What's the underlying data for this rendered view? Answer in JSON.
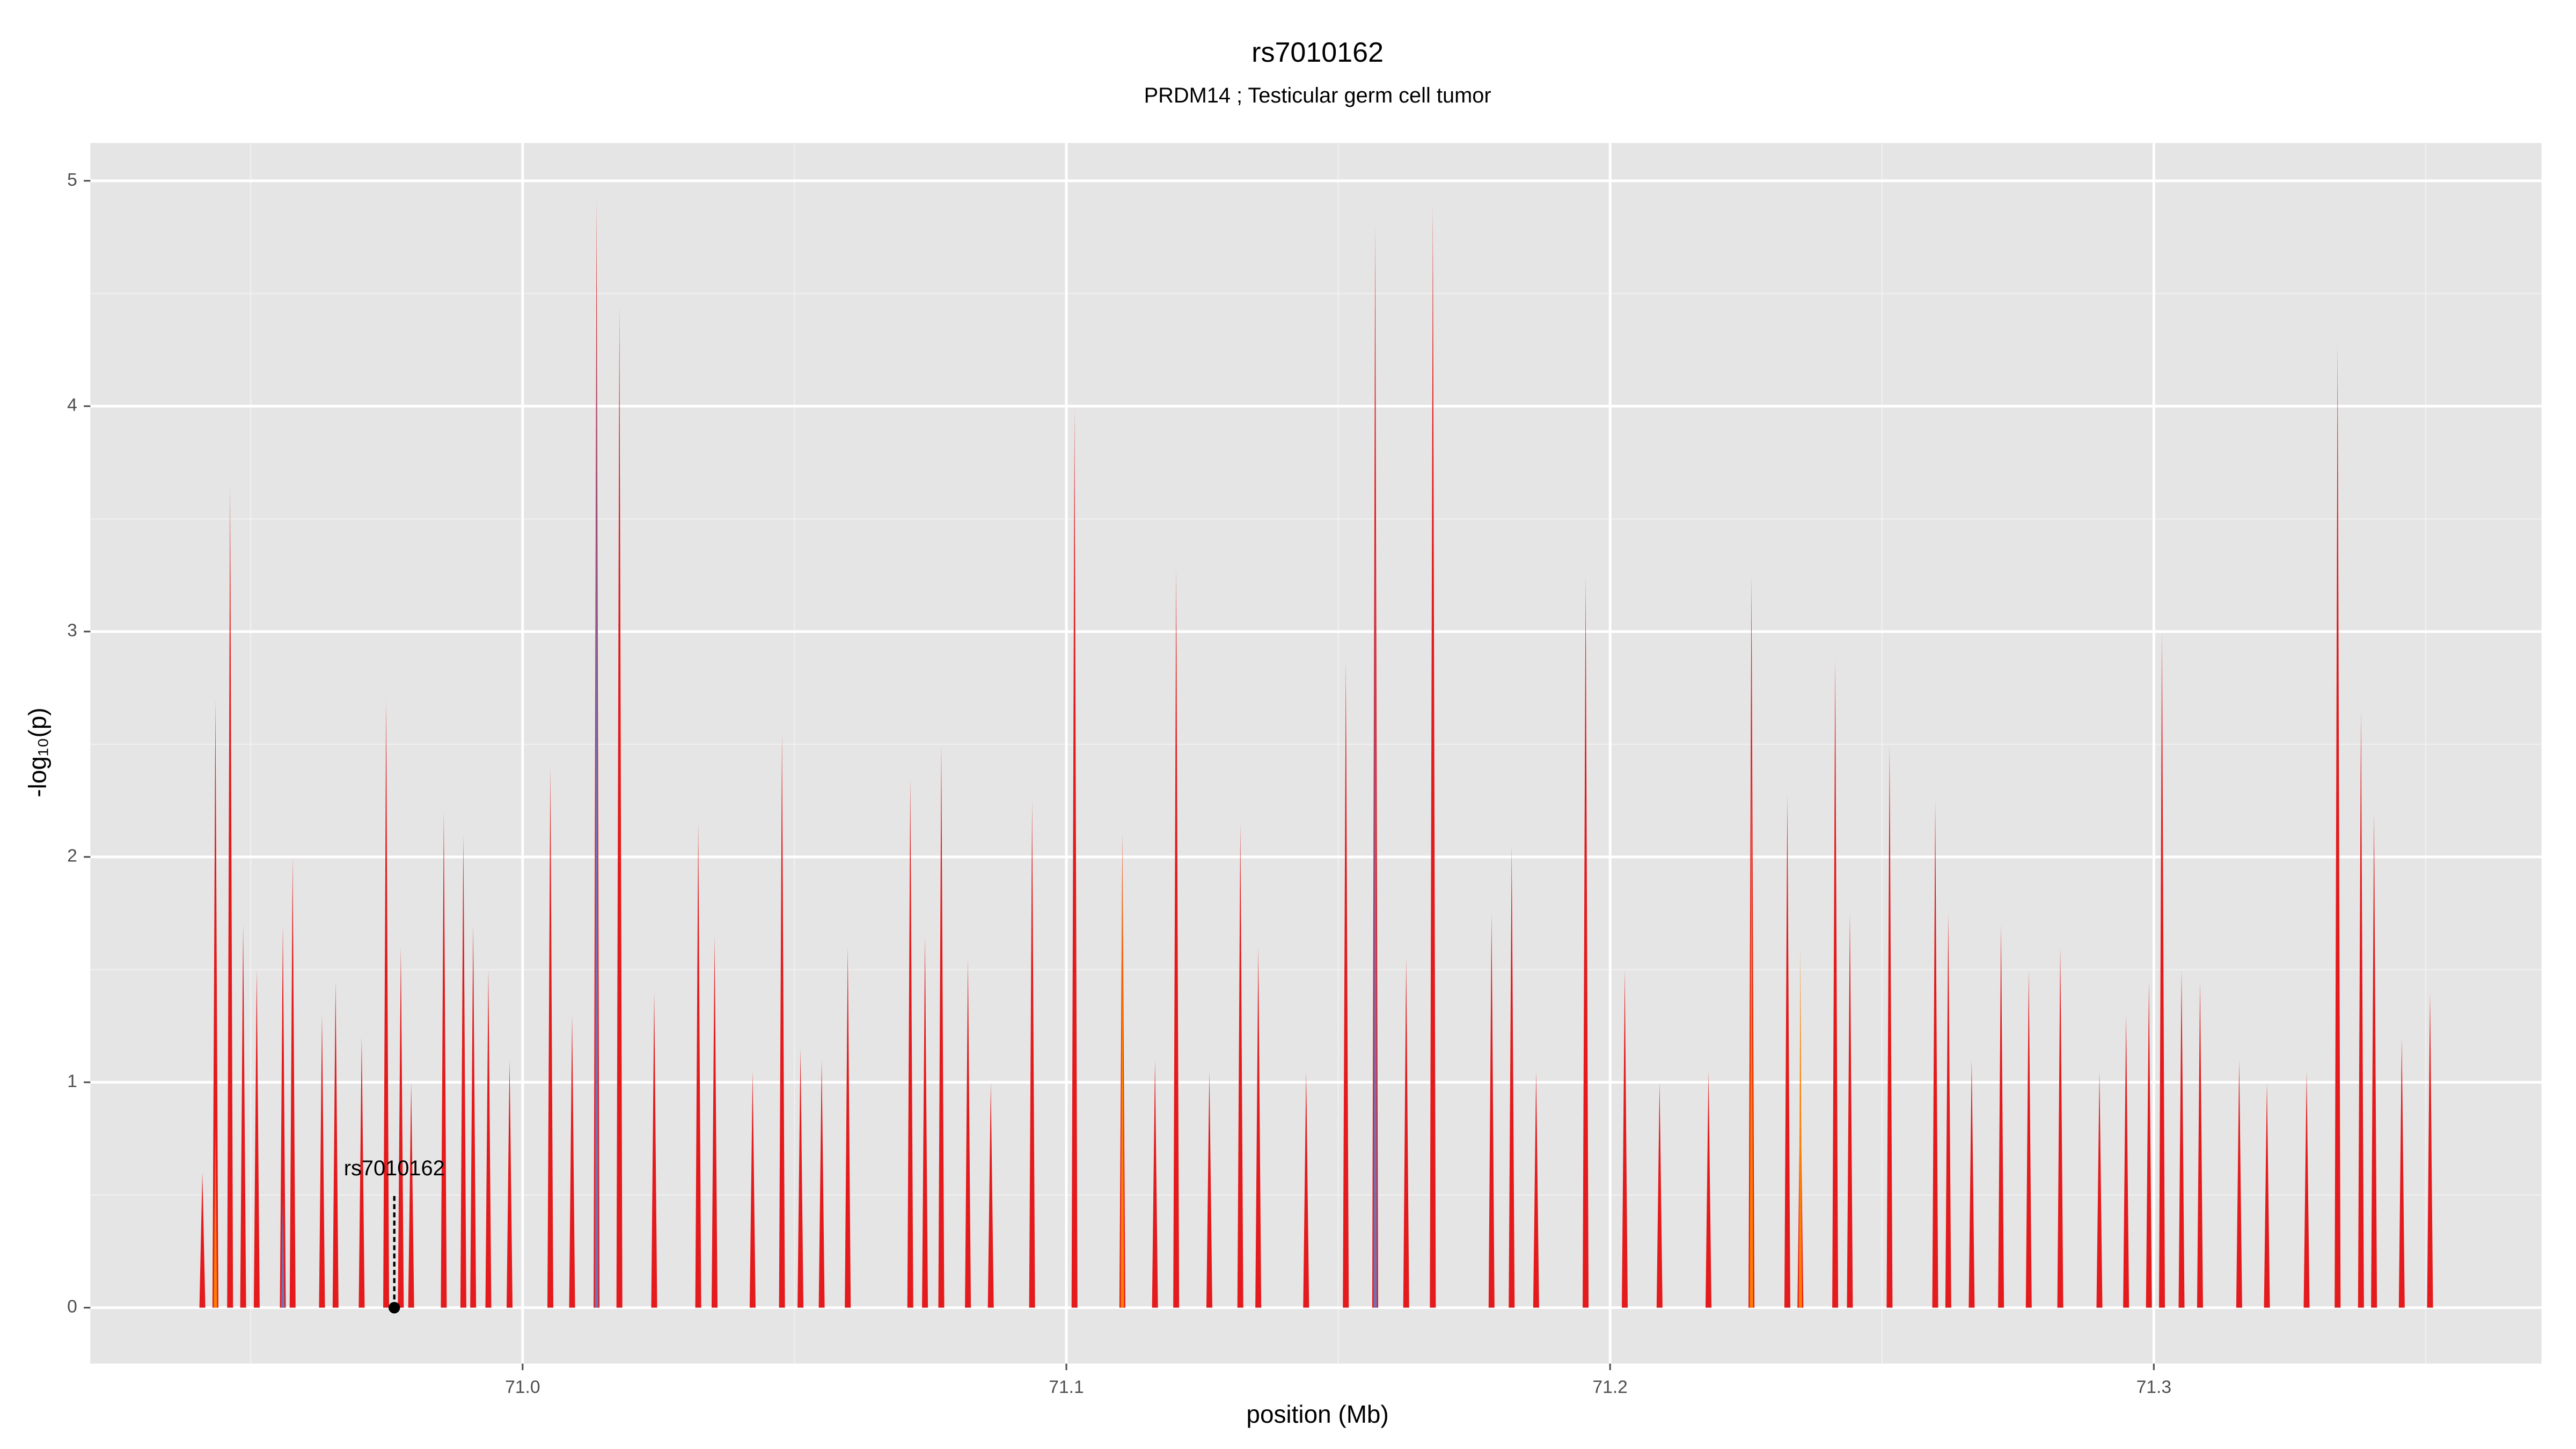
{
  "chart_data": {
    "type": "spike",
    "title": "rs7010162",
    "subtitle": "PRDM14 ; Testicular germ cell tumor",
    "x_label": "position (Mb)",
    "y_label": "-log₁₀(p)",
    "xlim": [
      70.9205,
      71.3713
    ],
    "ylim": [
      -0.248,
      5.168
    ],
    "xticks": [
      {
        "value": 71,
        "label": "71.0"
      },
      71.1,
      71.2,
      71.3
    ],
    "yticks": [
      0,
      1,
      2,
      3,
      4,
      5
    ],
    "x_minor_grid": [
      70.95,
      71.05,
      71.15,
      71.25,
      71.35
    ],
    "y_minor_grid": [
      0.5,
      1.5,
      2.5,
      3.5,
      4.5
    ],
    "grid": true,
    "series": [
      {
        "color": "#e41a1c",
        "x": [
          70.9411,
          70.9435,
          70.9462,
          70.9486,
          70.9511,
          70.9559,
          70.9577,
          70.9631,
          70.9656,
          70.9704,
          70.9749,
          70.9776,
          70.9795,
          70.9855,
          70.9891,
          70.9909,
          70.9937,
          70.9976,
          71.0051,
          71.0091,
          71.0136,
          71.0178,
          71.0242,
          71.0323,
          71.0353,
          71.0423,
          71.0477,
          71.0511,
          71.055,
          71.0598,
          71.0713,
          71.074,
          71.077,
          71.0819,
          71.0861,
          71.0937,
          71.1015,
          71.1103,
          71.1163,
          71.1202,
          71.1263,
          71.132,
          71.1353,
          71.1441,
          71.1514,
          71.1568,
          71.1625,
          71.1674,
          71.1782,
          71.1819,
          71.1864,
          71.1955,
          71.2027,
          71.2091,
          71.2181,
          71.226,
          71.2326,
          71.235,
          71.2414,
          71.2441,
          71.2514,
          71.2598,
          71.2622,
          71.2665,
          71.2719,
          71.277,
          71.2828,
          71.29,
          71.2949,
          71.2991,
          71.3015,
          71.3051,
          71.3085,
          71.3157,
          71.3208,
          71.3281,
          71.3338,
          71.3381,
          71.3405,
          71.3456,
          71.3508
        ],
        "values": [
          0.6,
          2.7,
          3.65,
          1.7,
          1.5,
          1.7,
          2.0,
          1.3,
          1.45,
          1.2,
          2.7,
          1.6,
          1.0,
          2.2,
          2.1,
          1.7,
          1.5,
          1.1,
          2.4,
          1.3,
          4.92,
          4.45,
          1.4,
          2.15,
          1.65,
          1.05,
          2.55,
          1.15,
          1.1,
          1.6,
          2.35,
          1.65,
          2.5,
          1.55,
          1.0,
          2.25,
          4.0,
          2.1,
          1.1,
          3.28,
          1.05,
          2.15,
          1.6,
          1.05,
          2.87,
          4.8,
          1.55,
          4.9,
          1.75,
          2.05,
          1.05,
          3.25,
          1.5,
          1.0,
          1.05,
          3.25,
          2.28,
          1.05,
          2.88,
          1.75,
          2.5,
          2.25,
          1.75,
          1.1,
          1.7,
          1.5,
          1.6,
          1.05,
          1.3,
          1.45,
          3.0,
          1.5,
          1.45,
          1.1,
          1.0,
          1.05,
          4.28,
          2.65,
          2.2,
          1.2,
          1.4
        ]
      },
      {
        "color": "#ff7f00",
        "x": [
          70.9435,
          71.1103,
          71.226,
          71.235
        ],
        "values": [
          0.8,
          2.1,
          2.5,
          1.6
        ]
      },
      {
        "color": "#7570b3",
        "x": [
          70.9559,
          71.0136,
          71.1568
        ],
        "values": [
          0.5,
          4.5,
          3.6
        ]
      }
    ],
    "annotation": {
      "text": "rs7010162",
      "x": 70.9764,
      "y": 0
    }
  }
}
